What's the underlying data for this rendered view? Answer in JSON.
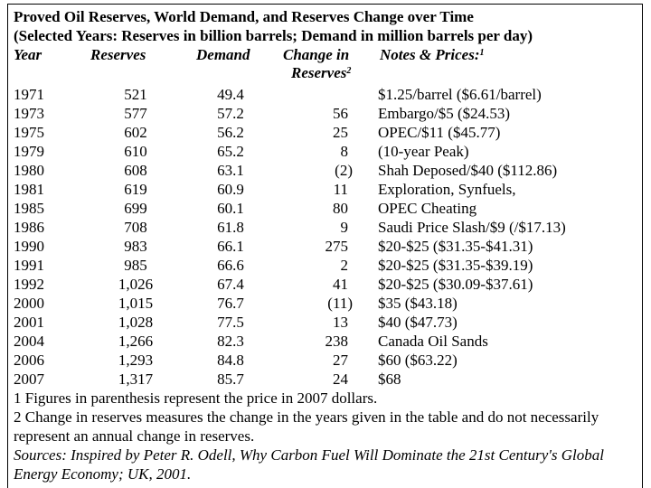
{
  "title": {
    "line1": "Proved Oil Reserves, World Demand, and Reserves Change over Time",
    "line2": "(Selected Years: Reserves in billion barrels; Demand in million barrels per day)"
  },
  "headers": {
    "year": "Year",
    "reserves": "Reserves",
    "demand": "Demand",
    "change_line1": "Change in",
    "change_line2": "Reserves",
    "change_sup": "2",
    "notes": "Notes & Prices:",
    "notes_sup": "1"
  },
  "rows": [
    {
      "year": "1971",
      "reserves": "521",
      "demand": "49.4",
      "change": "",
      "note": "$1.25/barrel ($6.61/barrel)"
    },
    {
      "year": "1973",
      "reserves": "577",
      "demand": "57.2",
      "change": "56",
      "note": "Embargo/$5 ($24.53)"
    },
    {
      "year": "1975",
      "reserves": "602",
      "demand": "56.2",
      "change": "25",
      "note": "OPEC/$11   ($45.77)"
    },
    {
      "year": "1979",
      "reserves": "610",
      "demand": "65.2",
      "change": "8",
      "note": "(10-year Peak)"
    },
    {
      "year": "1980",
      "reserves": "608",
      "demand": "63.1",
      "change": "(2)",
      "note": "Shah Deposed/$40 ($112.86)"
    },
    {
      "year": "1981",
      "reserves": "619",
      "demand": "60.9",
      "change": "11",
      "note": "Exploration, Synfuels,"
    },
    {
      "year": "1985",
      "reserves": "699",
      "demand": "60.1",
      "change": "80",
      "note": "OPEC Cheating"
    },
    {
      "year": "1986",
      "reserves": "708",
      "demand": "61.8",
      "change": "9",
      "note": "Saudi Price Slash/$9 (/$17.13)"
    },
    {
      "year": "1990",
      "reserves": "983",
      "demand": "66.1",
      "change": "275",
      "note": "$20-$25 ($31.35-$41.31)"
    },
    {
      "year": "1991",
      "reserves": "985",
      "demand": "66.6",
      "change": "2",
      "note": "$20-$25 ($31.35-$39.19)"
    },
    {
      "year": "1992",
      "reserves": "1,026",
      "demand": "67.4",
      "change": "41",
      "note": "$20-$25 ($30.09-$37.61)"
    },
    {
      "year": "2000",
      "reserves": "1,015",
      "demand": "76.7",
      "change": "(11)",
      "note": "$35 ($43.18)"
    },
    {
      "year": "2001",
      "reserves": "1,028",
      "demand": "77.5",
      "change": "13",
      "note": "$40 ($47.73)"
    },
    {
      "year": "2004",
      "reserves": "1,266",
      "demand": "82.3",
      "change": "238",
      "note": "Canada Oil Sands"
    },
    {
      "year": "2006",
      "reserves": "1,293",
      "demand": "84.8",
      "change": "27",
      "note": "$60 ($63.22)"
    },
    {
      "year": "2007",
      "reserves": "1,317",
      "demand": "85.7",
      "change": "24",
      "note": "$68"
    }
  ],
  "footnotes": {
    "note1": "1 Figures in parenthesis represent the price in 2007 dollars.",
    "note2": "2 Change in reserves measures the change in the years given in the table and do not necessarily represent an annual change in reserves.",
    "sources": "Sources: Inspired by Peter R. Odell, Why Carbon Fuel Will Dominate the 21st Century's Global Energy Economy; UK, 2001."
  }
}
